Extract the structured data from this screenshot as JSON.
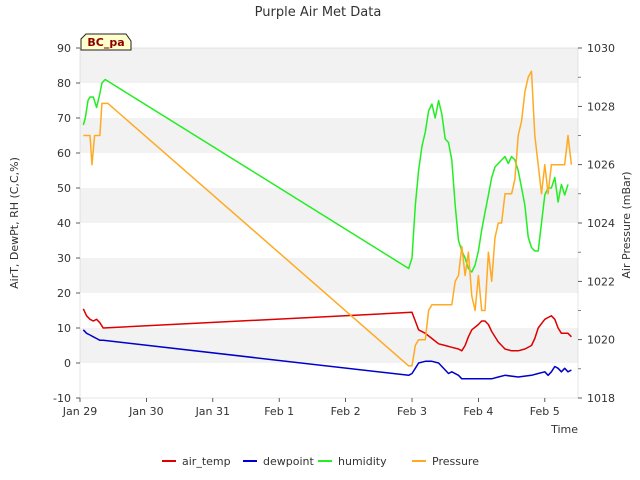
{
  "chart_data": {
    "type": "line",
    "title": "Purple Air Met Data",
    "xlabel": "Time",
    "ylabel": "AirT, DewPt, RH (C,C,%)",
    "y2label": "Air Pressure (mBar)",
    "badge": "BC_pa",
    "xlim": [
      0,
      7.5
    ],
    "ylim": [
      -10,
      90
    ],
    "y2lim": [
      1018,
      1030
    ],
    "x_ticks": [
      {
        "label": "Jan 29",
        "value": 0
      },
      {
        "label": "Jan 30",
        "value": 1
      },
      {
        "label": "Jan 31",
        "value": 2
      },
      {
        "label": "Feb 1",
        "value": 3
      },
      {
        "label": "Feb 2",
        "value": 4
      },
      {
        "label": "Feb 3",
        "value": 5
      },
      {
        "label": "Feb 4",
        "value": 6
      },
      {
        "label": "Feb 5",
        "value": 7
      }
    ],
    "y_ticks": [
      "-10",
      "0",
      "10",
      "20",
      "30",
      "40",
      "50",
      "60",
      "70",
      "80",
      "90"
    ],
    "y2_ticks": [
      "1018",
      "1020",
      "1022",
      "1024",
      "1026",
      "1028",
      "1030"
    ],
    "series": [
      {
        "name": "air_temp",
        "color": "#dd0000",
        "axis": "left",
        "points": [
          [
            0.05,
            15.5
          ],
          [
            0.1,
            13.5
          ],
          [
            0.15,
            12.5
          ],
          [
            0.2,
            12
          ],
          [
            0.25,
            12.5
          ],
          [
            0.3,
            11.5
          ],
          [
            0.35,
            10
          ],
          [
            5.0,
            14.5
          ],
          [
            5.05,
            12
          ],
          [
            5.1,
            9.5
          ],
          [
            5.2,
            8.5
          ],
          [
            5.3,
            7
          ],
          [
            5.4,
            5.5
          ],
          [
            5.5,
            5
          ],
          [
            5.6,
            4.5
          ],
          [
            5.7,
            4
          ],
          [
            5.75,
            3.5
          ],
          [
            5.8,
            5
          ],
          [
            5.85,
            7.5
          ],
          [
            5.9,
            9.5
          ],
          [
            6.0,
            11
          ],
          [
            6.05,
            12
          ],
          [
            6.1,
            12
          ],
          [
            6.15,
            11
          ],
          [
            6.2,
            9
          ],
          [
            6.3,
            6
          ],
          [
            6.4,
            4
          ],
          [
            6.5,
            3.5
          ],
          [
            6.6,
            3.5
          ],
          [
            6.7,
            4
          ],
          [
            6.8,
            5
          ],
          [
            6.85,
            7
          ],
          [
            6.9,
            10
          ],
          [
            7.0,
            12.5
          ],
          [
            7.05,
            13
          ],
          [
            7.1,
            13.5
          ],
          [
            7.15,
            12.5
          ],
          [
            7.2,
            10
          ],
          [
            7.25,
            8.5
          ],
          [
            7.3,
            8.5
          ],
          [
            7.35,
            8.5
          ],
          [
            7.4,
            7.5
          ]
        ]
      },
      {
        "name": "dewpoint",
        "color": "#0000cc",
        "axis": "left",
        "points": [
          [
            0.05,
            9.5
          ],
          [
            0.1,
            8.5
          ],
          [
            0.15,
            8
          ],
          [
            0.2,
            7.5
          ],
          [
            0.25,
            7
          ],
          [
            0.3,
            6.5
          ],
          [
            0.35,
            6.5
          ],
          [
            4.95,
            -3.5
          ],
          [
            5.0,
            -3
          ],
          [
            5.05,
            -1.5
          ],
          [
            5.1,
            0
          ],
          [
            5.2,
            0.5
          ],
          [
            5.3,
            0.5
          ],
          [
            5.4,
            0
          ],
          [
            5.5,
            -2
          ],
          [
            5.55,
            -3
          ],
          [
            5.6,
            -2.5
          ],
          [
            5.7,
            -3.5
          ],
          [
            5.75,
            -4.5
          ],
          [
            6.0,
            -4.5
          ],
          [
            6.2,
            -4.5
          ],
          [
            6.3,
            -4
          ],
          [
            6.4,
            -3.5
          ],
          [
            6.6,
            -4
          ],
          [
            6.8,
            -3.5
          ],
          [
            6.9,
            -3
          ],
          [
            7.0,
            -2.5
          ],
          [
            7.05,
            -3.5
          ],
          [
            7.1,
            -2.5
          ],
          [
            7.15,
            -1
          ],
          [
            7.2,
            -1.5
          ],
          [
            7.25,
            -2.5
          ],
          [
            7.3,
            -1.5
          ],
          [
            7.35,
            -2.5
          ],
          [
            7.4,
            -2
          ]
        ]
      },
      {
        "name": "humidity",
        "color": "#22ee22",
        "axis": "left",
        "points": [
          [
            0.05,
            68
          ],
          [
            0.08,
            70
          ],
          [
            0.12,
            75
          ],
          [
            0.15,
            76
          ],
          [
            0.2,
            76
          ],
          [
            0.25,
            73
          ],
          [
            0.3,
            77
          ],
          [
            0.33,
            80
          ],
          [
            0.38,
            81
          ],
          [
            4.95,
            27
          ],
          [
            5.0,
            30
          ],
          [
            5.05,
            45
          ],
          [
            5.1,
            55
          ],
          [
            5.15,
            62
          ],
          [
            5.2,
            66
          ],
          [
            5.25,
            72
          ],
          [
            5.3,
            74
          ],
          [
            5.35,
            70
          ],
          [
            5.4,
            75
          ],
          [
            5.45,
            71
          ],
          [
            5.5,
            64
          ],
          [
            5.55,
            63
          ],
          [
            5.6,
            58
          ],
          [
            5.65,
            45
          ],
          [
            5.7,
            35
          ],
          [
            5.75,
            32
          ],
          [
            5.8,
            30
          ],
          [
            5.85,
            27
          ],
          [
            5.9,
            26
          ],
          [
            5.95,
            28
          ],
          [
            6.0,
            32
          ],
          [
            6.05,
            38
          ],
          [
            6.1,
            43
          ],
          [
            6.15,
            48
          ],
          [
            6.2,
            53
          ],
          [
            6.25,
            56
          ],
          [
            6.3,
            57
          ],
          [
            6.35,
            58
          ],
          [
            6.4,
            59
          ],
          [
            6.45,
            57
          ],
          [
            6.5,
            59
          ],
          [
            6.55,
            58
          ],
          [
            6.6,
            55
          ],
          [
            6.65,
            50
          ],
          [
            6.7,
            45
          ],
          [
            6.75,
            36
          ],
          [
            6.8,
            33
          ],
          [
            6.85,
            32
          ],
          [
            6.9,
            32
          ],
          [
            6.95,
            40
          ],
          [
            7.0,
            48
          ],
          [
            7.05,
            50
          ],
          [
            7.1,
            50
          ],
          [
            7.15,
            53
          ],
          [
            7.2,
            46
          ],
          [
            7.25,
            51
          ],
          [
            7.3,
            48
          ],
          [
            7.35,
            51
          ]
        ]
      },
      {
        "name": "Pressure",
        "color": "#ffaa22",
        "axis": "right",
        "points": [
          [
            0.05,
            1027
          ],
          [
            0.15,
            1027
          ],
          [
            0.18,
            1026
          ],
          [
            0.22,
            1027
          ],
          [
            0.3,
            1027
          ],
          [
            0.33,
            1028.1
          ],
          [
            0.42,
            1028.1
          ],
          [
            4.95,
            1019.1
          ],
          [
            5.0,
            1019.1
          ],
          [
            5.05,
            1019.8
          ],
          [
            5.1,
            1020
          ],
          [
            5.2,
            1020
          ],
          [
            5.25,
            1021
          ],
          [
            5.3,
            1021.2
          ],
          [
            5.45,
            1021.2
          ],
          [
            5.6,
            1021.2
          ],
          [
            5.65,
            1022
          ],
          [
            5.7,
            1022.2
          ],
          [
            5.75,
            1023.2
          ],
          [
            5.8,
            1022.2
          ],
          [
            5.85,
            1023
          ],
          [
            5.9,
            1021.5
          ],
          [
            5.95,
            1021
          ],
          [
            6.0,
            1022.2
          ],
          [
            6.05,
            1021
          ],
          [
            6.1,
            1021
          ],
          [
            6.15,
            1023
          ],
          [
            6.2,
            1022
          ],
          [
            6.25,
            1023.5
          ],
          [
            6.3,
            1024
          ],
          [
            6.35,
            1024
          ],
          [
            6.4,
            1025
          ],
          [
            6.5,
            1025
          ],
          [
            6.55,
            1025.5
          ],
          [
            6.6,
            1027
          ],
          [
            6.65,
            1027.5
          ],
          [
            6.7,
            1028.5
          ],
          [
            6.75,
            1029
          ],
          [
            6.8,
            1029.2
          ],
          [
            6.85,
            1027
          ],
          [
            6.9,
            1026
          ],
          [
            6.95,
            1025
          ],
          [
            7.0,
            1026
          ],
          [
            7.05,
            1025
          ],
          [
            7.1,
            1026
          ],
          [
            7.15,
            1026
          ],
          [
            7.25,
            1026
          ],
          [
            7.3,
            1026
          ],
          [
            7.35,
            1027
          ],
          [
            7.4,
            1026
          ]
        ]
      }
    ],
    "legend_position": "bottom-center",
    "grid": "alternating horizontal bands"
  }
}
